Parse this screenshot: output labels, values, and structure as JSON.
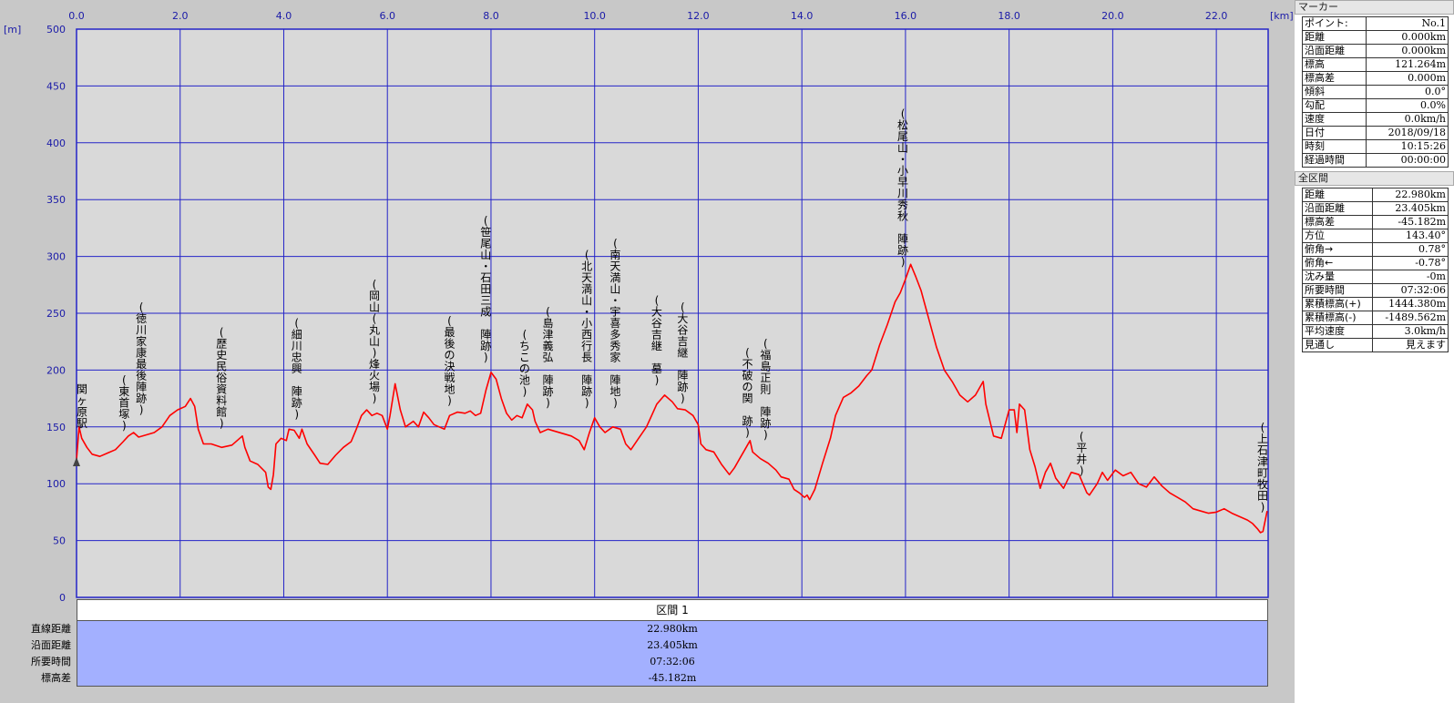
{
  "units": {
    "x": "[km]",
    "y": "[m]"
  },
  "chart_data": {
    "type": "line",
    "xlim": [
      0,
      23
    ],
    "ylim": [
      0,
      500
    ],
    "x_ticks": [
      "0.0",
      "2.0",
      "4.0",
      "6.0",
      "8.0",
      "10.0",
      "12.0",
      "14.0",
      "16.0",
      "18.0",
      "20.0",
      "22.0"
    ],
    "x_tick_values": [
      0,
      2,
      4,
      6,
      8,
      10,
      12,
      14,
      16,
      18,
      20,
      22
    ],
    "y_ticks": [
      0,
      50,
      100,
      150,
      200,
      250,
      300,
      350,
      400,
      450,
      500
    ],
    "grid": true,
    "line_color": "#ff0000",
    "series": [
      {
        "points": [
          [
            0,
            121
          ],
          [
            0.05,
            150
          ],
          [
            0.1,
            140
          ],
          [
            0.2,
            132
          ],
          [
            0.3,
            126
          ],
          [
            0.45,
            124
          ],
          [
            0.6,
            127
          ],
          [
            0.75,
            130
          ],
          [
            0.9,
            137
          ],
          [
            1.0,
            142
          ],
          [
            1.1,
            145
          ],
          [
            1.2,
            141
          ],
          [
            1.35,
            143
          ],
          [
            1.5,
            145
          ],
          [
            1.65,
            150
          ],
          [
            1.8,
            160
          ],
          [
            1.95,
            165
          ],
          [
            2.1,
            168
          ],
          [
            2.2,
            175
          ],
          [
            2.28,
            168
          ],
          [
            2.35,
            148
          ],
          [
            2.45,
            135
          ],
          [
            2.6,
            135
          ],
          [
            2.8,
            132
          ],
          [
            3.0,
            134
          ],
          [
            3.1,
            138
          ],
          [
            3.2,
            142
          ],
          [
            3.25,
            132
          ],
          [
            3.35,
            120
          ],
          [
            3.5,
            117
          ],
          [
            3.65,
            110
          ],
          [
            3.7,
            97
          ],
          [
            3.75,
            95
          ],
          [
            3.8,
            108
          ],
          [
            3.85,
            135
          ],
          [
            3.95,
            140
          ],
          [
            4.05,
            138
          ],
          [
            4.1,
            148
          ],
          [
            4.2,
            147
          ],
          [
            4.3,
            140
          ],
          [
            4.35,
            148
          ],
          [
            4.45,
            135
          ],
          [
            4.6,
            125
          ],
          [
            4.7,
            118
          ],
          [
            4.85,
            117
          ],
          [
            5.0,
            125
          ],
          [
            5.15,
            132
          ],
          [
            5.3,
            137
          ],
          [
            5.4,
            148
          ],
          [
            5.5,
            160
          ],
          [
            5.6,
            165
          ],
          [
            5.7,
            160
          ],
          [
            5.8,
            162
          ],
          [
            5.9,
            160
          ],
          [
            6.0,
            148
          ],
          [
            6.05,
            160
          ],
          [
            6.15,
            188
          ],
          [
            6.25,
            165
          ],
          [
            6.35,
            150
          ],
          [
            6.5,
            155
          ],
          [
            6.6,
            150
          ],
          [
            6.7,
            163
          ],
          [
            6.8,
            158
          ],
          [
            6.9,
            152
          ],
          [
            7.0,
            150
          ],
          [
            7.1,
            148
          ],
          [
            7.2,
            160
          ],
          [
            7.35,
            163
          ],
          [
            7.5,
            162
          ],
          [
            7.6,
            164
          ],
          [
            7.7,
            160
          ],
          [
            7.8,
            162
          ],
          [
            7.9,
            182
          ],
          [
            8.0,
            198
          ],
          [
            8.1,
            192
          ],
          [
            8.2,
            175
          ],
          [
            8.3,
            162
          ],
          [
            8.4,
            156
          ],
          [
            8.5,
            160
          ],
          [
            8.6,
            158
          ],
          [
            8.7,
            170
          ],
          [
            8.8,
            165
          ],
          [
            8.85,
            155
          ],
          [
            8.95,
            145
          ],
          [
            9.1,
            148
          ],
          [
            9.25,
            146
          ],
          [
            9.4,
            144
          ],
          [
            9.55,
            142
          ],
          [
            9.7,
            138
          ],
          [
            9.8,
            130
          ],
          [
            9.9,
            145
          ],
          [
            10.0,
            158
          ],
          [
            10.1,
            150
          ],
          [
            10.2,
            145
          ],
          [
            10.35,
            150
          ],
          [
            10.5,
            148
          ],
          [
            10.6,
            135
          ],
          [
            10.7,
            130
          ],
          [
            10.85,
            140
          ],
          [
            11.0,
            150
          ],
          [
            11.1,
            160
          ],
          [
            11.2,
            170
          ],
          [
            11.35,
            178
          ],
          [
            11.5,
            172
          ],
          [
            11.6,
            166
          ],
          [
            11.75,
            165
          ],
          [
            11.9,
            160
          ],
          [
            12.0,
            152
          ],
          [
            12.05,
            135
          ],
          [
            12.15,
            130
          ],
          [
            12.3,
            128
          ],
          [
            12.45,
            117
          ],
          [
            12.6,
            108
          ],
          [
            12.7,
            114
          ],
          [
            12.8,
            122
          ],
          [
            12.9,
            130
          ],
          [
            13.0,
            138
          ],
          [
            13.05,
            128
          ],
          [
            13.2,
            122
          ],
          [
            13.35,
            118
          ],
          [
            13.5,
            112
          ],
          [
            13.6,
            106
          ],
          [
            13.75,
            104
          ],
          [
            13.85,
            95
          ],
          [
            13.95,
            92
          ],
          [
            14.05,
            88
          ],
          [
            14.1,
            90
          ],
          [
            14.15,
            86
          ],
          [
            14.25,
            95
          ],
          [
            14.4,
            118
          ],
          [
            14.55,
            140
          ],
          [
            14.65,
            160
          ],
          [
            14.8,
            176
          ],
          [
            14.95,
            180
          ],
          [
            15.1,
            186
          ],
          [
            15.25,
            195
          ],
          [
            15.35,
            200
          ],
          [
            15.5,
            222
          ],
          [
            15.65,
            240
          ],
          [
            15.8,
            260
          ],
          [
            15.9,
            268
          ],
          [
            16.0,
            280
          ],
          [
            16.1,
            293
          ],
          [
            16.2,
            282
          ],
          [
            16.3,
            270
          ],
          [
            16.45,
            245
          ],
          [
            16.6,
            220
          ],
          [
            16.75,
            200
          ],
          [
            16.9,
            190
          ],
          [
            17.05,
            178
          ],
          [
            17.2,
            172
          ],
          [
            17.35,
            178
          ],
          [
            17.5,
            190
          ],
          [
            17.55,
            170
          ],
          [
            17.7,
            142
          ],
          [
            17.85,
            140
          ],
          [
            18.0,
            165
          ],
          [
            18.1,
            165
          ],
          [
            18.15,
            145
          ],
          [
            18.2,
            170
          ],
          [
            18.3,
            165
          ],
          [
            18.4,
            130
          ],
          [
            18.5,
            115
          ],
          [
            18.6,
            96
          ],
          [
            18.7,
            110
          ],
          [
            18.8,
            118
          ],
          [
            18.9,
            105
          ],
          [
            19.05,
            96
          ],
          [
            19.2,
            110
          ],
          [
            19.35,
            108
          ],
          [
            19.5,
            92
          ],
          [
            19.55,
            90
          ],
          [
            19.7,
            100
          ],
          [
            19.8,
            110
          ],
          [
            19.9,
            103
          ],
          [
            20.05,
            112
          ],
          [
            20.2,
            107
          ],
          [
            20.35,
            110
          ],
          [
            20.5,
            100
          ],
          [
            20.65,
            97
          ],
          [
            20.8,
            106
          ],
          [
            20.95,
            98
          ],
          [
            21.1,
            92
          ],
          [
            21.25,
            88
          ],
          [
            21.4,
            84
          ],
          [
            21.55,
            78
          ],
          [
            21.7,
            76
          ],
          [
            21.85,
            74
          ],
          [
            22.0,
            75
          ],
          [
            22.15,
            78
          ],
          [
            22.3,
            74
          ],
          [
            22.5,
            70
          ],
          [
            22.6,
            68
          ],
          [
            22.7,
            65
          ],
          [
            22.8,
            60
          ],
          [
            22.85,
            57
          ],
          [
            22.9,
            58
          ],
          [
            22.98,
            76
          ]
        ]
      }
    ],
    "annotations": [
      {
        "x": 0.0,
        "text": "関ヶ原駅",
        "bottom": 150
      },
      {
        "x": 0.92,
        "text": "(東首塚)",
        "bottom": 148
      },
      {
        "x": 1.25,
        "text": "(徳川家康最後陣跡)",
        "bottom": 162
      },
      {
        "x": 2.8,
        "text": "(歴史民俗資料館)",
        "bottom": 150
      },
      {
        "x": 4.25,
        "text": "(細川忠興 陣跡)",
        "bottom": 158
      },
      {
        "x": 5.75,
        "text": "(岡山(丸山)烽火場)",
        "bottom": 172
      },
      {
        "x": 7.2,
        "text": "(最後の決戦地)",
        "bottom": 170
      },
      {
        "x": 7.9,
        "text": "(笹尾山・石田三成 陣跡)",
        "bottom": 208
      },
      {
        "x": 8.65,
        "text": "(ちこの池)",
        "bottom": 178
      },
      {
        "x": 9.1,
        "text": "(島津義弘 陣跡)",
        "bottom": 168
      },
      {
        "x": 9.85,
        "text": "(北天満山・小西行長 陣跡)",
        "bottom": 168
      },
      {
        "x": 10.4,
        "text": "(南天満山・宇喜多秀家 陣地)",
        "bottom": 168
      },
      {
        "x": 11.2,
        "text": "(大谷吉継 墓)",
        "bottom": 188
      },
      {
        "x": 11.7,
        "text": "(大谷吉継 陣跡)",
        "bottom": 172
      },
      {
        "x": 12.95,
        "text": "(不破の関 跡)",
        "bottom": 142
      },
      {
        "x": 13.3,
        "text": "(福島正則 陣跡)",
        "bottom": 140
      },
      {
        "x": 15.95,
        "text": "(松尾山・小早川秀秋 陣跡)",
        "bottom": 292
      },
      {
        "x": 19.4,
        "text": "(平井)",
        "bottom": 108
      },
      {
        "x": 22.92,
        "text": "(上石津町牧田)",
        "bottom": 76
      }
    ]
  },
  "segment": {
    "header": "区間 1",
    "labels": [
      "直線距離",
      "沿面距離",
      "所要時間",
      "標高差"
    ],
    "values": [
      "22.980km",
      "23.405km",
      "07:32:06",
      "-45.182m"
    ]
  },
  "marker_panel": {
    "title": "マーカー",
    "rows": [
      {
        "label": "ポイント:",
        "value": "No.1"
      },
      {
        "label": "距離",
        "value": "0.000km"
      },
      {
        "label": "沿面距離",
        "value": "0.000km"
      },
      {
        "label": "標高",
        "value": "121.264m"
      },
      {
        "label": "標高差",
        "value": "0.000m"
      },
      {
        "label": "傾斜",
        "value": "0.0°"
      },
      {
        "label": "勾配",
        "value": "0.0%"
      },
      {
        "label": "速度",
        "value": "0.0km/h"
      },
      {
        "label": "日付",
        "value": "2018/09/18"
      },
      {
        "label": "時刻",
        "value": "10:15:26"
      },
      {
        "label": "経過時間",
        "value": "00:00:00"
      }
    ]
  },
  "total_panel": {
    "title": "全区間",
    "rows": [
      {
        "label": "距離",
        "value": "22.980km"
      },
      {
        "label": "沿面距離",
        "value": "23.405km"
      },
      {
        "label": "標高差",
        "value": "-45.182m"
      },
      {
        "label": "方位",
        "value": "143.40°"
      },
      {
        "label": "俯角→",
        "value": "0.78°"
      },
      {
        "label": "俯角←",
        "value": "-0.78°"
      },
      {
        "label": "沈み量",
        "value": "-0m"
      },
      {
        "label": "所要時間",
        "value": "07:32:06"
      },
      {
        "label": "累積標高(+)",
        "value": "1444.380m"
      },
      {
        "label": "累積標高(-)",
        "value": "-1489.562m"
      },
      {
        "label": "平均速度",
        "value": "3.0km/h"
      },
      {
        "label": "見通し",
        "value": "見えます"
      }
    ]
  }
}
